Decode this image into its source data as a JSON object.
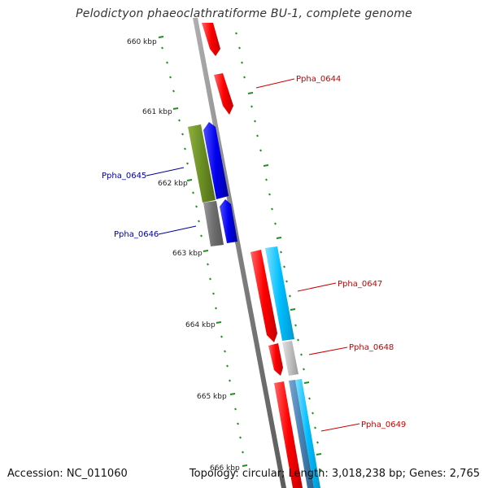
{
  "title": "Pelodictyon phaeoclathratiforme BU-1, complete genome",
  "footer": {
    "accession": "Accession: NC_011060",
    "topology": "Topology: circular; Length: 3,018,238 bp; Genes: 2,765"
  },
  "ruler": {
    "ticks": [
      "660 kbp",
      "661 kbp",
      "662 kbp",
      "663 kbp",
      "664 kbp",
      "665 kbp",
      "666 kbp"
    ]
  },
  "genes": [
    {
      "name": "Ppha_0644",
      "strand": "plus",
      "color": "#cc0000"
    },
    {
      "name": "Ppha_0645",
      "strand": "minus",
      "color": "#000099"
    },
    {
      "name": "Ppha_0646",
      "strand": "minus",
      "color": "#000099"
    },
    {
      "name": "Ppha_0647",
      "strand": "plus",
      "color": "#cc0000"
    },
    {
      "name": "Ppha_0648",
      "strand": "plus",
      "color": "#cc0000"
    },
    {
      "name": "Ppha_0649",
      "strand": "plus",
      "color": "#cc0000"
    }
  ],
  "colors": {
    "backbone": "#808080",
    "cds_plus": "#ff0000",
    "cds_minus": "#0000ee",
    "cog_green": "#6b8e23",
    "cog_gray": "#6e6e6e",
    "cog_cyan": "#00bfff",
    "cog_light": "#c0c0c0",
    "cog_steel": "#4682b4",
    "tick": "#228b22"
  }
}
